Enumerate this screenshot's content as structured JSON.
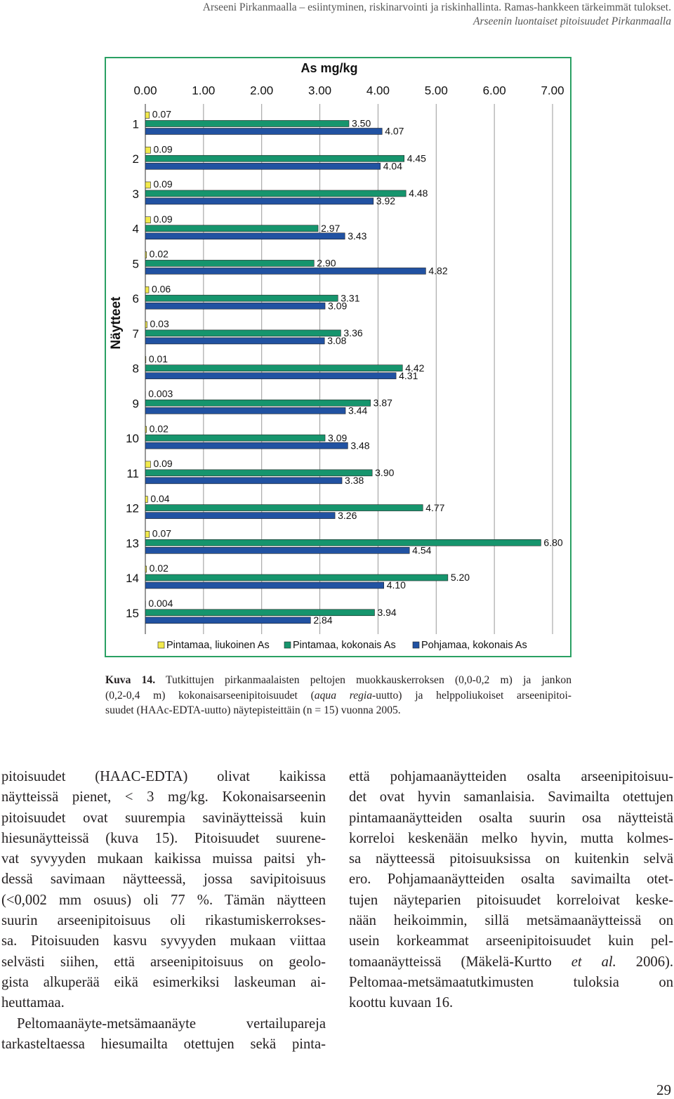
{
  "header": {
    "line_1": "Arseeni Pirkanmaalla – esiintyminen, riskinarvointi ja riskinhallinta. Ramas-hankkeen tärkeimmät tulokset.",
    "line_2": "Arseenin luontaiset pitoisuudet Pirkanmaalla"
  },
  "chart_data": {
    "type": "bar",
    "orientation": "horizontal",
    "title": "As mg/kg",
    "y_label": "Näytteet",
    "categories": [
      "1",
      "2",
      "3",
      "4",
      "5",
      "6",
      "7",
      "8",
      "9",
      "10",
      "11",
      "12",
      "13",
      "14",
      "15"
    ],
    "series": [
      {
        "name": "Pintamaa, liukoinen As",
        "color": "#f2ea4c",
        "values": [
          0.07,
          0.09,
          0.09,
          0.09,
          0.02,
          0.06,
          0.03,
          0.01,
          0.003,
          0.02,
          0.09,
          0.04,
          0.07,
          0.02,
          0.004
        ],
        "value_labels": [
          "0.07",
          "0.09",
          "0.09",
          "0.09",
          "0.02",
          "0.06",
          "0.03",
          "0.01",
          "0.003",
          "0.02",
          "0.09",
          "0.04",
          "0.07",
          "0.02",
          "0.004"
        ]
      },
      {
        "name": "Pintamaa, kokonais As",
        "color": "#16956d",
        "values": [
          3.5,
          4.45,
          4.48,
          2.97,
          2.9,
          3.31,
          3.36,
          4.42,
          3.87,
          3.09,
          3.9,
          4.77,
          6.8,
          5.2,
          3.94
        ],
        "value_labels": [
          "3.50",
          "4.45",
          "4.48",
          "2.97",
          "2.90",
          "3.31",
          "3.36",
          "4.42",
          "3.87",
          "3.09",
          "3.90",
          "4.77",
          "6.80",
          "5.20",
          "3.94"
        ]
      },
      {
        "name": "Pohjamaa, kokonais As",
        "color": "#2152a2",
        "values": [
          4.07,
          4.04,
          3.92,
          3.43,
          4.82,
          3.09,
          3.08,
          4.31,
          3.44,
          3.48,
          3.38,
          3.26,
          4.54,
          4.1,
          2.84
        ],
        "value_labels": [
          "4.07",
          "4.04",
          "3.92",
          "3.43",
          "4.82",
          "3.09",
          "3.08",
          "4.31",
          "3.44",
          "3.48",
          "3.38",
          "3.26",
          "4.54",
          "4.10",
          "2.84"
        ]
      }
    ],
    "xlim": [
      0,
      7
    ],
    "xticks": [
      {
        "value": 0,
        "label": "0.00"
      },
      {
        "value": 1,
        "label": "1.00"
      },
      {
        "value": 2,
        "label": "2.00"
      },
      {
        "value": 3,
        "label": "3.00"
      },
      {
        "value": 4,
        "label": "4.00"
      },
      {
        "value": 5,
        "label": "5.00"
      },
      {
        "value": 6,
        "label": "6.00"
      },
      {
        "value": 7,
        "label": "7.00"
      }
    ],
    "grid": true,
    "legend": "bottom"
  },
  "caption": {
    "lines": [
      [
        {
          "text": "Kuva 14.",
          "bold": true
        },
        " Tutkittujen pirkanmaalaisten peltojen muokkauskerroksen (0,0-0,2 m) ja jankon"
      ],
      [
        "(0,2-0,4 m) kokonaisarseenipitoisuudet (",
        {
          "text": "aqua regia",
          "italic": true
        },
        "-uutto) ja helppoliukoiset arseenipitoi-"
      ],
      [
        "suudet (HAAc-EDTA-uutto) näytepisteittäin  (n = 15) vuonna 2005."
      ]
    ]
  },
  "body": {
    "left": [
      [
        "pitoisuudet (HAAC-EDTA) olivat kaikissa",
        "näytteissä pienet, < 3 mg/kg. Kokonaisarseenin",
        "pitoisuudet ovat suurempia savinäytteissä kuin",
        "hiesunäytteissä (kuva 15). Pitoisuudet suurene-",
        "vat syvyyden mukaan kaikissa muissa paitsi yh-",
        "dessä savimaan näytteessä, jossa savipitoisuus",
        "(<0,002 mm osuus) oli 77 %. Tämän näytteen",
        "suurin arseenipitoisuus oli rikastumiskerrokses-",
        "sa. Pitoisuuden kasvu syvyyden mukaan viittaa",
        "selvästi siihen, että arseenipitoisuus on geolo-",
        "gista alkuperää eikä esimerkiksi laskeuman ai-",
        "heuttamaa."
      ],
      [
        "Peltomaanäyte-metsämaanäyte vertailupareja",
        "tarkasteltaessa hiesumailta otettujen sekä pinta-"
      ]
    ],
    "right": [
      [
        "että pohjamaanäytteiden osalta arseenipitoisuu-",
        "det ovat hyvin samanlaisia. Savimailta otettujen",
        "pintamaanäytteiden osalta suurin osa näytteistä",
        "korreloi keskenään melko hyvin, mutta kolmes-",
        "sa näytteessä pitoisuuksissa on kuitenkin selvä",
        "ero. Pohjamaanäytteiden osalta savimailta otet-",
        "tujen näyteparien pitoisuudet korreloivat keske-",
        "nään heikoimmin, sillä metsämaanäytteissä on",
        "usein korkeammat arseenipitoisuudet kuin pel-",
        [
          "tomaanäytteissä (Mäkelä-Kurtto ",
          {
            "text": "et al.",
            "italic": true
          },
          " 2006)."
        ],
        "Peltomaa-metsämaatutkimusten tuloksia on",
        "koottu kuvaan 16."
      ]
    ]
  },
  "page_number": "29"
}
